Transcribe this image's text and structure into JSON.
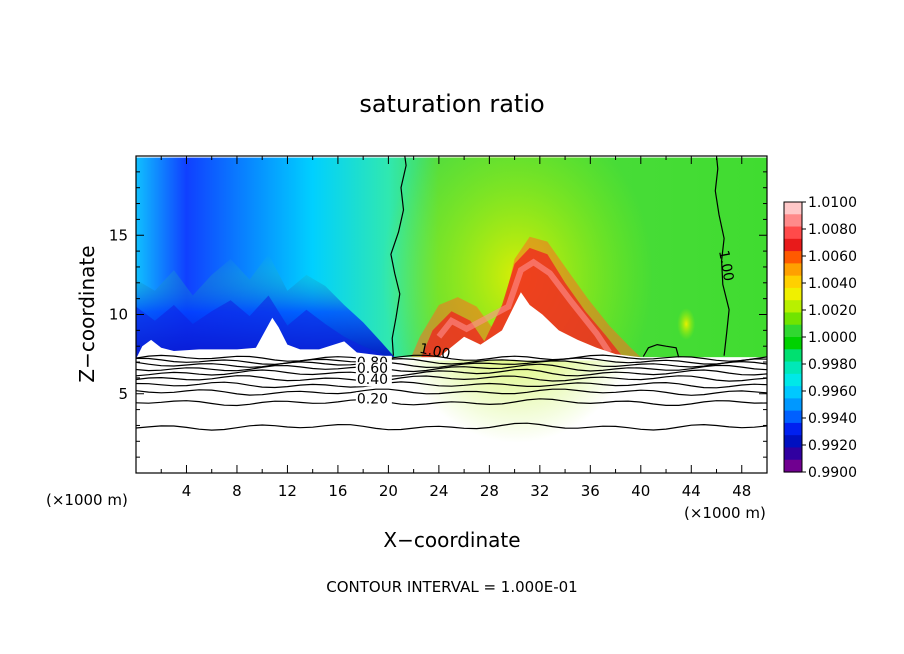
{
  "chart_data": {
    "type": "heatmap",
    "title": "saturation ratio",
    "xlabel": "X−coordinate",
    "ylabel": "Z−coordinate",
    "x_unit_left": "(×1000 m)",
    "x_unit_right": "(×1000 m)",
    "xlim": [
      0,
      50
    ],
    "ylim": [
      0,
      20
    ],
    "x_ticks": [
      4,
      8,
      12,
      16,
      20,
      24,
      28,
      32,
      36,
      40,
      44,
      48
    ],
    "y_ticks": [
      5,
      10,
      15
    ],
    "colorbar": {
      "levels": [
        "1.0100",
        "1.0080",
        "1.0060",
        "1.0040",
        "1.0020",
        "1.0000",
        "0.9980",
        "0.9960",
        "0.9940",
        "0.9920",
        "0.9900"
      ],
      "colors": [
        "#ffc8c8",
        "#ff8a8a",
        "#ff4a4a",
        "#e81a1a",
        "#ff5a00",
        "#ffa000",
        "#ffd000",
        "#f0f000",
        "#b8f000",
        "#70e400",
        "#30d830",
        "#00d200",
        "#00e070",
        "#00e8b8",
        "#00e8e8",
        "#00c8ff",
        "#0098ff",
        "#0060ff",
        "#0020f0",
        "#0010c0",
        "#3000a0",
        "#700090"
      ]
    },
    "contour_labels": [
      {
        "text": "1.00",
        "x": 22.4,
        "z": 7.6
      },
      {
        "text": "1.00",
        "x": 46.2,
        "z": 14.0
      },
      {
        "text": "0.80",
        "x": 17.5,
        "z": 6.7
      },
      {
        "text": "0.60",
        "x": 17.5,
        "z": 6.3
      },
      {
        "text": "0.40",
        "x": 17.5,
        "z": 5.6
      },
      {
        "text": "0.20",
        "x": 17.5,
        "z": 4.4
      }
    ],
    "annotation": "CONTOUR INTERVAL = 1.000E-01"
  }
}
